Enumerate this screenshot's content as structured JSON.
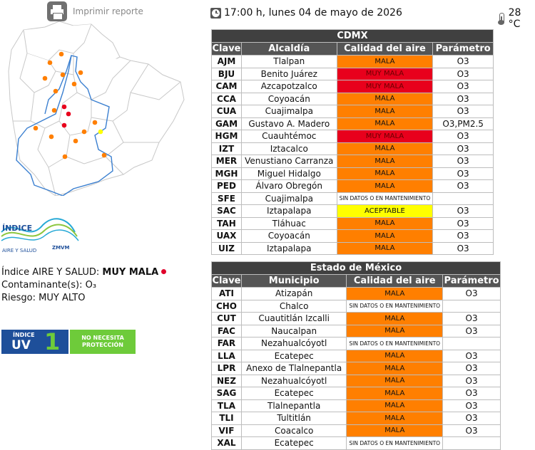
{
  "print_label": "Imprimir reporte",
  "datetime": "17:00 h, lunes 04 de mayo de 2026",
  "temperature": "28 °C",
  "logo": {
    "line1": "ÍNDICE",
    "line2": "AIRE Y SALUD",
    "zmvm": "ZMVM"
  },
  "status": {
    "indice_label": "Índice AIRE Y SALUD:",
    "indice_value": "MUY MALA",
    "contaminante_label": "Contaminante(s):",
    "contaminante_value": "O₃",
    "riesgo_label": "Riesgo:",
    "riesgo_value": "MUY ALTO"
  },
  "uv": {
    "small": "ÍNDICE",
    "big": "UV",
    "value": "1",
    "protection": "NO NECESITA PROTECCIÓN"
  },
  "colors": {
    "mala": "#ff7f00",
    "muy_mala": "#e8001c",
    "aceptable": "#ffff00",
    "sin_datos": "#ffffff",
    "uv": "#1e4f9a",
    "uv_green": "#6ecb3a"
  },
  "cdmx": {
    "title": "CDMX",
    "headers": [
      "Clave",
      "Alcaldía",
      "Calidad del aire",
      "Parámetro"
    ],
    "rows": [
      {
        "clave": "AJM",
        "nombre": "Tlalpan",
        "calidad": "MALA",
        "nivel": "mala",
        "parametro": "O3"
      },
      {
        "clave": "BJU",
        "nombre": "Benito Juárez",
        "calidad": "MUY MALA",
        "nivel": "muymala",
        "parametro": "O3"
      },
      {
        "clave": "CAM",
        "nombre": "Azcapotzalco",
        "calidad": "MUY MALA",
        "nivel": "muymala",
        "parametro": "O3"
      },
      {
        "clave": "CCA",
        "nombre": "Coyoacán",
        "calidad": "MALA",
        "nivel": "mala",
        "parametro": "O3"
      },
      {
        "clave": "CUA",
        "nombre": "Cuajimalpa",
        "calidad": "MALA",
        "nivel": "mala",
        "parametro": "O3"
      },
      {
        "clave": "GAM",
        "nombre": "Gustavo A. Madero",
        "calidad": "MALA",
        "nivel": "mala",
        "parametro": "O3,PM2.5"
      },
      {
        "clave": "HGM",
        "nombre": "Cuauhtémoc",
        "calidad": "MUY MALA",
        "nivel": "muymala",
        "parametro": "O3"
      },
      {
        "clave": "IZT",
        "nombre": "Iztacalco",
        "calidad": "MALA",
        "nivel": "mala",
        "parametro": "O3"
      },
      {
        "clave": "MER",
        "nombre": "Venustiano Carranza",
        "calidad": "MALA",
        "nivel": "mala",
        "parametro": "O3"
      },
      {
        "clave": "MGH",
        "nombre": "Miguel Hidalgo",
        "calidad": "MALA",
        "nivel": "mala",
        "parametro": "O3"
      },
      {
        "clave": "PED",
        "nombre": "Álvaro Obregón",
        "calidad": "MALA",
        "nivel": "mala",
        "parametro": "O3"
      },
      {
        "clave": "SFE",
        "nombre": "Cuajimalpa",
        "calidad": "SIN DATOS O EN MANTENIMIENTO",
        "nivel": "sindatos",
        "parametro": ""
      },
      {
        "clave": "SAC",
        "nombre": "Iztapalapa",
        "calidad": "ACEPTABLE",
        "nivel": "aceptable",
        "parametro": "O3"
      },
      {
        "clave": "TAH",
        "nombre": "Tláhuac",
        "calidad": "MALA",
        "nivel": "mala",
        "parametro": "O3"
      },
      {
        "clave": "UAX",
        "nombre": "Coyoacán",
        "calidad": "MALA",
        "nivel": "mala",
        "parametro": "O3"
      },
      {
        "clave": "UIZ",
        "nombre": "Iztapalapa",
        "calidad": "MALA",
        "nivel": "mala",
        "parametro": "O3"
      }
    ]
  },
  "edomex": {
    "title": "Estado de México",
    "headers": [
      "Clave",
      "Municipio",
      "Calidad del aire",
      "Parámetro"
    ],
    "rows": [
      {
        "clave": "ATI",
        "nombre": "Atizapán",
        "calidad": "MALA",
        "nivel": "mala",
        "parametro": "O3"
      },
      {
        "clave": "CHO",
        "nombre": "Chalco",
        "calidad": "SIN DATOS O EN MANTENIMIENTO",
        "nivel": "sindatos",
        "parametro": ""
      },
      {
        "clave": "CUT",
        "nombre": "Cuautitlán Izcalli",
        "calidad": "MALA",
        "nivel": "mala",
        "parametro": "O3"
      },
      {
        "clave": "FAC",
        "nombre": "Naucalpan",
        "calidad": "MALA",
        "nivel": "mala",
        "parametro": "O3"
      },
      {
        "clave": "FAR",
        "nombre": "Nezahualcóyotl",
        "calidad": "SIN DATOS O EN MANTENIMIENTO",
        "nivel": "sindatos",
        "parametro": ""
      },
      {
        "clave": "LLA",
        "nombre": "Ecatepec",
        "calidad": "MALA",
        "nivel": "mala",
        "parametro": "O3"
      },
      {
        "clave": "LPR",
        "nombre": "Anexo de Tlalnepantla",
        "calidad": "MALA",
        "nivel": "mala",
        "parametro": "O3"
      },
      {
        "clave": "NEZ",
        "nombre": "Nezahualcóyotl",
        "calidad": "MALA",
        "nivel": "mala",
        "parametro": "O3"
      },
      {
        "clave": "SAG",
        "nombre": "Ecatepec",
        "calidad": "MALA",
        "nivel": "mala",
        "parametro": "O3"
      },
      {
        "clave": "TLA",
        "nombre": "Tlalnepantla",
        "calidad": "MALA",
        "nivel": "mala",
        "parametro": "O3"
      },
      {
        "clave": "TLI",
        "nombre": "Tultitlán",
        "calidad": "MALA",
        "nivel": "mala",
        "parametro": "O3"
      },
      {
        "clave": "VIF",
        "nombre": "Coacalco",
        "calidad": "MALA",
        "nivel": "mala",
        "parametro": "O3"
      },
      {
        "clave": "XAL",
        "nombre": "Ecatepec",
        "calidad": "SIN DATOS O EN MANTENIMIENTO",
        "nivel": "sindatos",
        "parametro": ""
      }
    ]
  }
}
